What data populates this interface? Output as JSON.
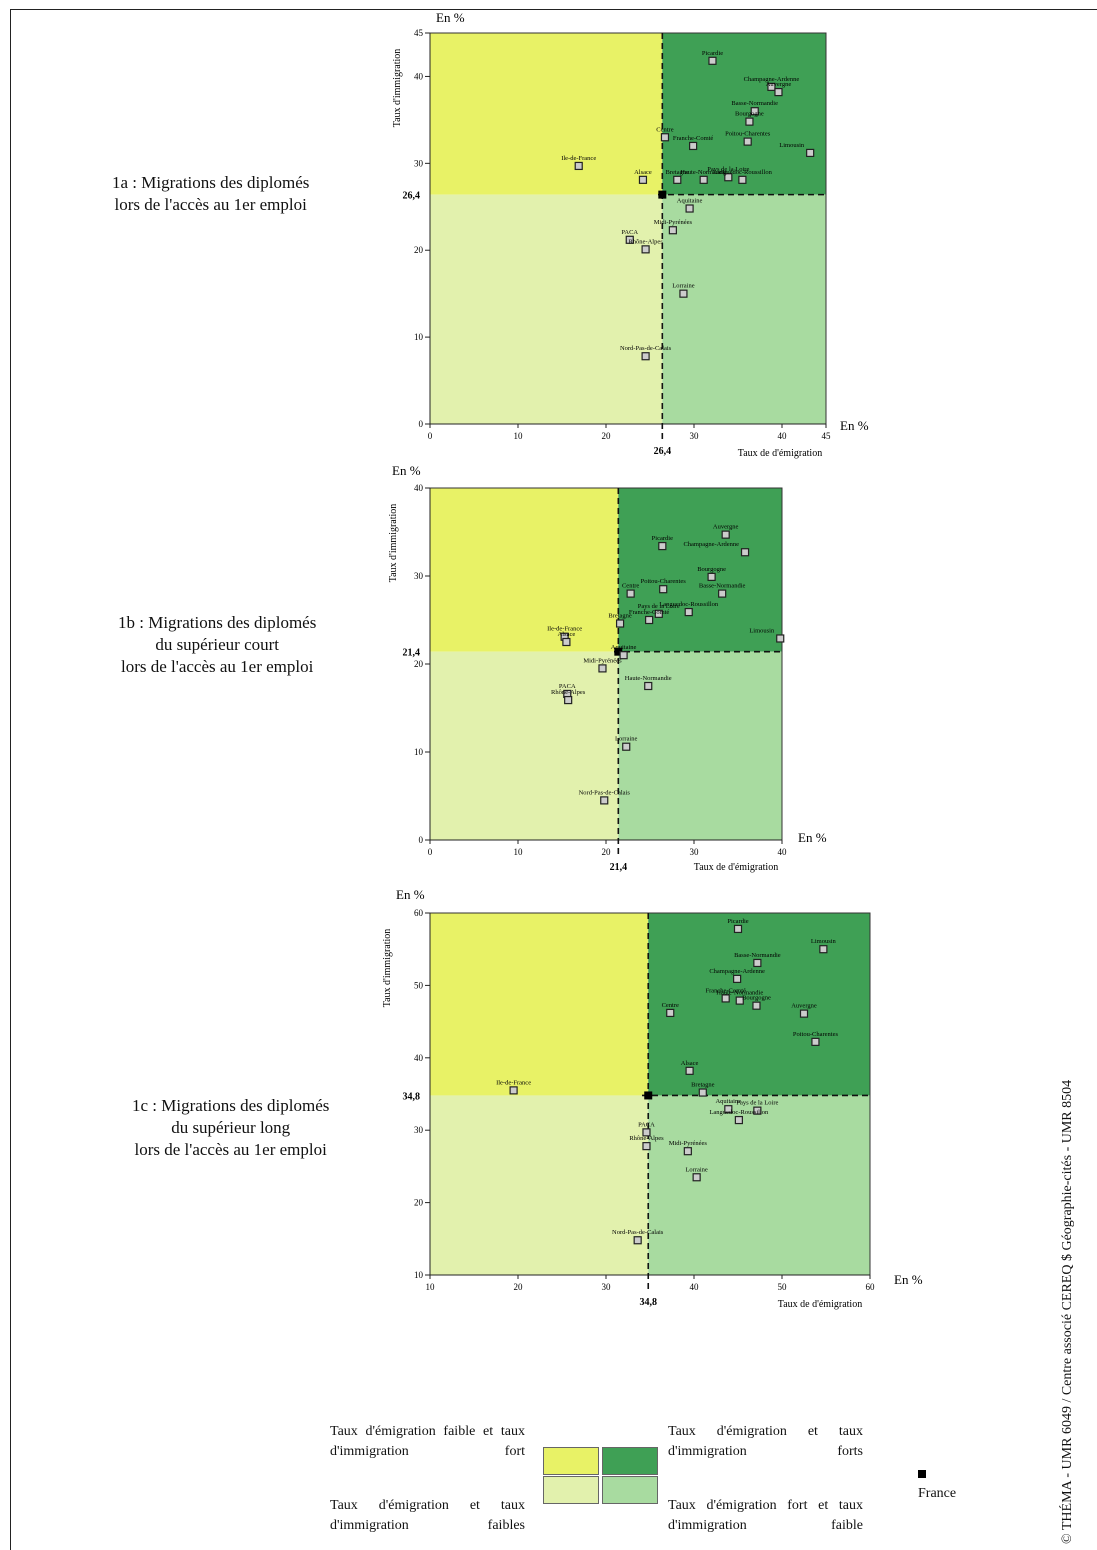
{
  "charts": [
    {
      "id": "1a",
      "title_lines": [
        "1a : Migrations des diplomés",
        "lors de l'accès au 1er emploi"
      ],
      "y_unit_label": "En %",
      "x_unit_label": "En %",
      "ylabel": "Taux d'immigration",
      "xlabel": "Taux de d'émigration",
      "france_label_y": "26,4",
      "france_label_x": "26,4",
      "xticks": [
        "0",
        "10",
        "20",
        "30",
        "40",
        "45"
      ],
      "yticks": [
        "0",
        "10",
        "20",
        "30",
        "40",
        "45"
      ]
    },
    {
      "id": "1b",
      "title_lines": [
        "1b : Migrations des diplomés",
        "du supérieur court",
        "lors de l'accès au 1er emploi"
      ],
      "y_unit_label": "En %",
      "x_unit_label": "En %",
      "ylabel": "Taux d'immigration",
      "xlabel": "Taux de d'émigration",
      "france_label_y": "21,4",
      "france_label_x": "21,4",
      "xticks": [
        "0",
        "10",
        "20",
        "30",
        "40"
      ],
      "yticks": [
        "0",
        "10",
        "20",
        "30",
        "40"
      ]
    },
    {
      "id": "1c",
      "title_lines": [
        "1c : Migrations des diplomés",
        "du supérieur long",
        "lors de l'accès au 1er emploi"
      ],
      "y_unit_label": "En %",
      "x_unit_label": "En %",
      "ylabel": "Taux d'immigration",
      "xlabel": "Taux de d'émigration",
      "france_label_y": "34,8",
      "france_label_x": "34,8",
      "xticks": [
        "10",
        "20",
        "30",
        "40",
        "50",
        "60"
      ],
      "yticks": [
        "10",
        "20",
        "30",
        "40",
        "50",
        "60"
      ]
    }
  ],
  "chart_data": [
    {
      "type": "scatter",
      "xlim": [
        0,
        45
      ],
      "ylim": [
        0,
        45
      ],
      "france": {
        "x": 26.4,
        "y": 26.4
      },
      "quadrant_colors": {
        "top_left": "#e8f266",
        "top_right": "#3fa055",
        "bottom_left": "#e2f1ad",
        "bottom_right": "#a8dba0"
      },
      "points": [
        {
          "name": "Picardie",
          "x": 32.1,
          "y": 41.8
        },
        {
          "name": "Champagne-Ardenne",
          "x": 38.8,
          "y": 38.8
        },
        {
          "name": "Auvergne",
          "x": 39.6,
          "y": 38.2
        },
        {
          "name": "Basse-Normandie",
          "x": 36.9,
          "y": 36.0
        },
        {
          "name": "Bourgogne",
          "x": 36.3,
          "y": 34.8
        },
        {
          "name": "Poitou-Charentes",
          "x": 36.1,
          "y": 32.5
        },
        {
          "name": "Centre",
          "x": 26.7,
          "y": 33.0
        },
        {
          "name": "Franche-Comté",
          "x": 29.9,
          "y": 32.0
        },
        {
          "name": "Limousin",
          "x": 43.2,
          "y": 31.2
        },
        {
          "name": "Ile-de-France",
          "x": 16.9,
          "y": 29.7
        },
        {
          "name": "Alsace",
          "x": 24.2,
          "y": 28.1
        },
        {
          "name": "Bretagne",
          "x": 28.1,
          "y": 28.1
        },
        {
          "name": "Pays de la Loire",
          "x": 33.9,
          "y": 28.4
        },
        {
          "name": "Haute-Normandie",
          "x": 31.1,
          "y": 28.1
        },
        {
          "name": "Languedoc-Roussillon",
          "x": 35.5,
          "y": 28.1
        },
        {
          "name": "Aquitaine",
          "x": 29.5,
          "y": 24.8
        },
        {
          "name": "Midi-Pyrénées",
          "x": 27.6,
          "y": 22.3
        },
        {
          "name": "PACA",
          "x": 22.7,
          "y": 21.2
        },
        {
          "name": "Rhône-Alpes",
          "x": 24.5,
          "y": 20.1
        },
        {
          "name": "Lorraine",
          "x": 28.8,
          "y": 15.0
        },
        {
          "name": "Nord-Pas-de-Calais",
          "x": 24.5,
          "y": 7.8
        }
      ]
    },
    {
      "type": "scatter",
      "xlim": [
        0,
        40
      ],
      "ylim": [
        0,
        40
      ],
      "france": {
        "x": 21.4,
        "y": 21.4
      },
      "quadrant_colors": {
        "top_left": "#e8f266",
        "top_right": "#3fa055",
        "bottom_left": "#e2f1ad",
        "bottom_right": "#a8dba0"
      },
      "points": [
        {
          "name": "Auvergne",
          "x": 33.6,
          "y": 34.7
        },
        {
          "name": "Picardie",
          "x": 26.4,
          "y": 33.4
        },
        {
          "name": "Champagne-Ardenne",
          "x": 35.8,
          "y": 32.7
        },
        {
          "name": "Bourgogne",
          "x": 32.0,
          "y": 29.9
        },
        {
          "name": "Poitou-Charentes",
          "x": 26.5,
          "y": 28.5
        },
        {
          "name": "Centre",
          "x": 22.8,
          "y": 28.0
        },
        {
          "name": "Basse-Normandie",
          "x": 33.2,
          "y": 28.0
        },
        {
          "name": "Pays de la Loire",
          "x": 26.0,
          "y": 25.7
        },
        {
          "name": "Languedoc-Roussillon",
          "x": 29.4,
          "y": 25.9
        },
        {
          "name": "Bretagne",
          "x": 21.6,
          "y": 24.6
        },
        {
          "name": "Franche-Comté",
          "x": 24.9,
          "y": 25.0
        },
        {
          "name": "Limousin",
          "x": 39.8,
          "y": 22.9
        },
        {
          "name": "Ile-de-France",
          "x": 15.3,
          "y": 23.1
        },
        {
          "name": "Alsace",
          "x": 15.5,
          "y": 22.5
        },
        {
          "name": "Aquitaine",
          "x": 22.0,
          "y": 21.0
        },
        {
          "name": "Midi-Pyrénées",
          "x": 19.6,
          "y": 19.5
        },
        {
          "name": "Haute-Normandie",
          "x": 24.8,
          "y": 17.5
        },
        {
          "name": "PACA",
          "x": 15.6,
          "y": 16.6
        },
        {
          "name": "Rhône-Alpes",
          "x": 15.7,
          "y": 15.9
        },
        {
          "name": "Lorraine",
          "x": 22.3,
          "y": 10.6
        },
        {
          "name": "Nord-Pas-de-Calais",
          "x": 19.8,
          "y": 4.5
        }
      ]
    },
    {
      "type": "scatter",
      "xlim": [
        10,
        60
      ],
      "ylim": [
        10,
        60
      ],
      "france": {
        "x": 34.8,
        "y": 34.8
      },
      "quadrant_colors": {
        "top_left": "#e8f266",
        "top_right": "#3fa055",
        "bottom_left": "#e2f1ad",
        "bottom_right": "#a8dba0"
      },
      "points": [
        {
          "name": "Picardie",
          "x": 45.0,
          "y": 57.8
        },
        {
          "name": "Limousin",
          "x": 54.7,
          "y": 55.0
        },
        {
          "name": "Basse-Normandie",
          "x": 47.2,
          "y": 53.1
        },
        {
          "name": "Champagne-Ardenne",
          "x": 44.9,
          "y": 50.9
        },
        {
          "name": "Franche-Comté",
          "x": 43.6,
          "y": 48.2
        },
        {
          "name": "Haute-Normandie",
          "x": 45.2,
          "y": 47.9
        },
        {
          "name": "Bourgogne",
          "x": 47.1,
          "y": 47.2
        },
        {
          "name": "Auvergne",
          "x": 52.5,
          "y": 46.1
        },
        {
          "name": "Centre",
          "x": 37.3,
          "y": 46.2
        },
        {
          "name": "Poitou-Charentes",
          "x": 53.8,
          "y": 42.2
        },
        {
          "name": "Alsace",
          "x": 39.5,
          "y": 38.2
        },
        {
          "name": "Ile-de-France",
          "x": 19.5,
          "y": 35.5
        },
        {
          "name": "Bretagne",
          "x": 41.0,
          "y": 35.2
        },
        {
          "name": "Aquitaine",
          "x": 43.9,
          "y": 32.9
        },
        {
          "name": "Pays de la Loire",
          "x": 47.2,
          "y": 32.7
        },
        {
          "name": "Languedoc-Roussillon",
          "x": 45.1,
          "y": 31.4
        },
        {
          "name": "PACA",
          "x": 34.6,
          "y": 29.7
        },
        {
          "name": "Rhône-Alpes",
          "x": 34.6,
          "y": 27.8
        },
        {
          "name": "Midi-Pyrénées",
          "x": 39.3,
          "y": 27.1
        },
        {
          "name": "Lorraine",
          "x": 40.3,
          "y": 23.5
        },
        {
          "name": "Nord-Pas-de-Calais",
          "x": 33.6,
          "y": 14.8
        }
      ]
    }
  ],
  "legend": {
    "top_left_text": "Taux d'émigration faible et taux d'immigration fort",
    "top_right_text": "Taux d'émigration et taux d'immigration forts",
    "bottom_left_text": "Taux d'émigration et taux d'immigration faibles",
    "bottom_right_text": "Taux d'émigration fort et taux d'immigration faible",
    "france_label": "France"
  },
  "credit": "© THÉMA - UMR 6049 / Centre associé CEREQ $ Géographie-cités - UMR 8504"
}
